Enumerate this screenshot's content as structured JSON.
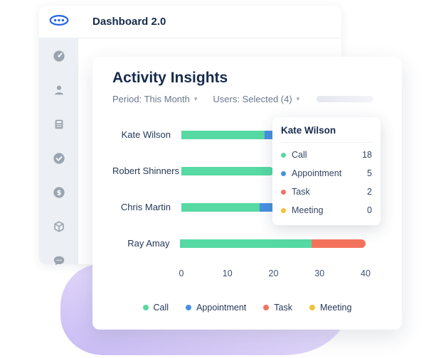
{
  "app": {
    "title": "Dashboard 2.0"
  },
  "sidebar": {
    "items": [
      {
        "name": "dashboard",
        "icon": "gauge-icon"
      },
      {
        "name": "contacts",
        "icon": "user-icon"
      },
      {
        "name": "calculator",
        "icon": "calculator-icon"
      },
      {
        "name": "tasks",
        "icon": "check-circle-icon"
      },
      {
        "name": "deals",
        "icon": "dollar-circle-icon"
      },
      {
        "name": "products",
        "icon": "cube-icon"
      },
      {
        "name": "chat",
        "icon": "chat-bubble-icon"
      }
    ]
  },
  "card": {
    "title": "Activity Insights",
    "filters": {
      "period_label": "Period: This Month",
      "users_label": "Users: Selected (4)"
    }
  },
  "tooltip": {
    "title": "Kate Wilson",
    "rows": [
      {
        "label": "Call",
        "value": 18,
        "color": "#56d9a2"
      },
      {
        "label": "Appointment",
        "value": 5,
        "color": "#4a90e2"
      },
      {
        "label": "Task",
        "value": 2,
        "color": "#f4735c"
      },
      {
        "label": "Meeting",
        "value": 0,
        "color": "#f2c335"
      }
    ]
  },
  "chart_data": {
    "type": "bar",
    "orientation": "horizontal",
    "stacked": true,
    "title": "Activity Insights",
    "categories": [
      "Kate Wilson",
      "Robert Shinners",
      "Chris Martin",
      "Ray Amay"
    ],
    "series": [
      {
        "name": "Call",
        "color": "#56d9a2",
        "values": [
          18,
          20,
          17,
          29
        ]
      },
      {
        "name": "Appointment",
        "color": "#4a90e2",
        "values": [
          5,
          0,
          4,
          0
        ]
      },
      {
        "name": "Task",
        "color": "#f4735c",
        "values": [
          2,
          0,
          0,
          12
        ]
      },
      {
        "name": "Meeting",
        "color": "#f2c335",
        "values": [
          0,
          0,
          0,
          0
        ]
      }
    ],
    "x_ticks": [
      0,
      10,
      20,
      30,
      40
    ],
    "xlim": [
      0,
      40
    ],
    "grid": false,
    "legend": [
      "Call",
      "Appointment",
      "Task",
      "Meeting"
    ],
    "legend_position": "bottom"
  },
  "colors": {
    "accent_blue": "#2565e8",
    "navy_text": "#172b4d",
    "gray_text": "#6b778c",
    "rail_bg": "#eceff3",
    "blob_from": "#c8bbf4",
    "blob_to": "#f2eefd"
  }
}
